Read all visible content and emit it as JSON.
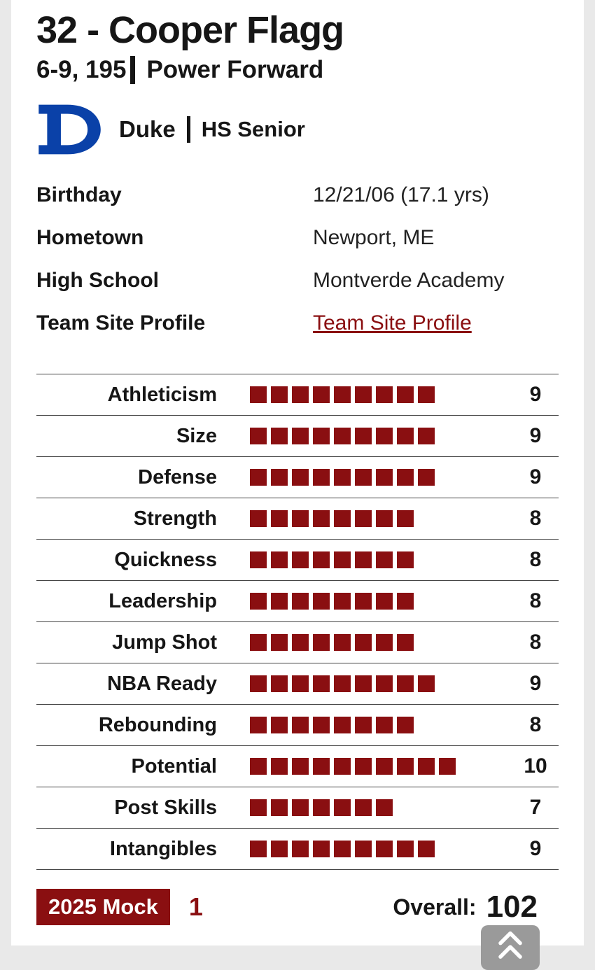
{
  "player": {
    "title": "32 - Cooper Flagg",
    "measurements": "6-9, 195",
    "position": "Power Forward",
    "team": "Duke",
    "class": "HS Senior"
  },
  "info": [
    {
      "label": "Birthday",
      "value": "12/21/06 (17.1 yrs)",
      "link": false
    },
    {
      "label": "Hometown",
      "value": "Newport, ME",
      "link": false
    },
    {
      "label": "High School",
      "value": "Montverde Academy",
      "link": false
    },
    {
      "label": "Team Site Profile",
      "value": "Team Site Profile",
      "link": true
    }
  ],
  "ratings": [
    {
      "label": "Athleticism",
      "value": 9
    },
    {
      "label": "Size",
      "value": 9
    },
    {
      "label": "Defense",
      "value": 9
    },
    {
      "label": "Strength",
      "value": 8
    },
    {
      "label": "Quickness",
      "value": 8
    },
    {
      "label": "Leadership",
      "value": 8
    },
    {
      "label": "Jump Shot",
      "value": 8
    },
    {
      "label": "NBA Ready",
      "value": 9
    },
    {
      "label": "Rebounding",
      "value": 8
    },
    {
      "label": "Potential",
      "value": 10
    },
    {
      "label": "Post Skills",
      "value": 7
    },
    {
      "label": "Intangibles",
      "value": 9
    }
  ],
  "footer": {
    "mock_label": "2025 Mock",
    "mock_value": "1",
    "overall_label": "Overall:",
    "overall_value": "102"
  },
  "icons": {
    "team_logo": "duke-d-logo",
    "scroll_top": "chevron-up-icon"
  },
  "colors": {
    "accent": "#8a0f11",
    "duke_blue": "#0a41a8",
    "divider": "#444444",
    "scroll_button": "#9a9a9a"
  }
}
